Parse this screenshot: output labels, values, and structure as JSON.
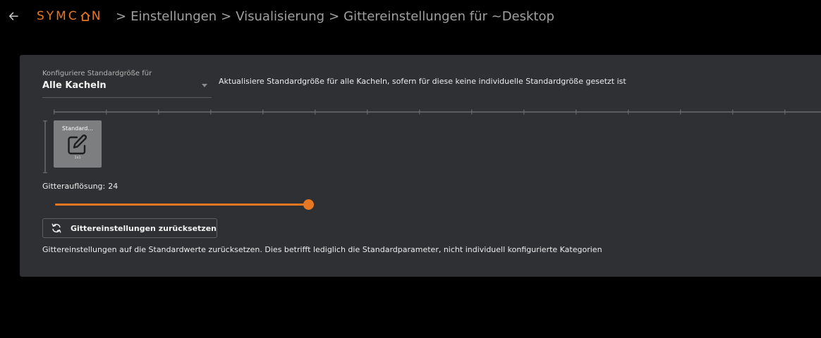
{
  "header": {
    "back_icon": "arrow-left-icon",
    "logo": "SYMCON",
    "breadcrumb": [
      "Einstellungen",
      "Visualisierung",
      "Gittereinstellungen für ~Desktop"
    ],
    "separator": ">"
  },
  "panel": {
    "select": {
      "label": "Konfiguriere Standardgröße für",
      "value": "Alle Kacheln",
      "description": "Aktualisiere Standardgröße für alle Kacheln, sofern für diese keine individuelle Standardgröße gesetzt ist"
    },
    "tile": {
      "title": "Standard...",
      "icon": "edit-icon",
      "subtitle": "1x1"
    },
    "grid_resolution": {
      "label": "Gitterauflösung:",
      "value": "24"
    },
    "slider": {
      "value": 24,
      "max": 24
    },
    "reset": {
      "icon": "refresh-icon",
      "label": "Gittereinstellungen zurücksetzen",
      "description": "Gittereinstellungen auf die Standardwerte zurücksetzen. Dies betrifft lediglich die Standardparameter, nicht individuell konfigurierte Kategorien"
    }
  },
  "colors": {
    "accent": "#e87722",
    "panel": "#2f3033",
    "background": "#000000"
  }
}
